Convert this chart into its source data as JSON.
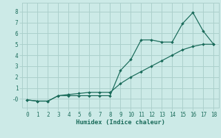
{
  "xlabel": "Humidex (Indice chaleur)",
  "background_color": "#cceae7",
  "grid_color": "#aacfcb",
  "line_color": "#1a6b5a",
  "line1_x": [
    0,
    1,
    2,
    3,
    4,
    5,
    6,
    7,
    8,
    9,
    10,
    11,
    12,
    13,
    14,
    15,
    16,
    17,
    18
  ],
  "line1_y": [
    -0.1,
    -0.2,
    -0.2,
    0.3,
    0.3,
    0.3,
    0.3,
    0.3,
    0.3,
    2.6,
    3.6,
    5.4,
    5.4,
    5.2,
    5.2,
    6.9,
    7.9,
    6.2,
    5.0
  ],
  "line2_x": [
    0,
    1,
    2,
    3,
    4,
    5,
    6,
    7,
    8,
    9,
    10,
    11,
    12,
    13,
    14,
    15,
    16,
    17,
    18
  ],
  "line2_y": [
    -0.1,
    -0.2,
    -0.2,
    0.3,
    0.4,
    0.5,
    0.6,
    0.6,
    0.6,
    1.4,
    2.0,
    2.5,
    3.0,
    3.5,
    4.0,
    4.5,
    4.8,
    5.0,
    5.0
  ],
  "ylim": [
    -0.8,
    8.8
  ],
  "xlim": [
    -0.5,
    18.5
  ],
  "yticks": [
    0,
    1,
    2,
    3,
    4,
    5,
    6,
    7,
    8
  ],
  "ytick_labels": [
    "-0",
    "1",
    "2",
    "3",
    "4",
    "5",
    "6",
    "7",
    "8"
  ],
  "xticks": [
    0,
    1,
    2,
    3,
    4,
    5,
    6,
    7,
    8,
    9,
    10,
    11,
    12,
    13,
    14,
    15,
    16,
    17,
    18
  ]
}
